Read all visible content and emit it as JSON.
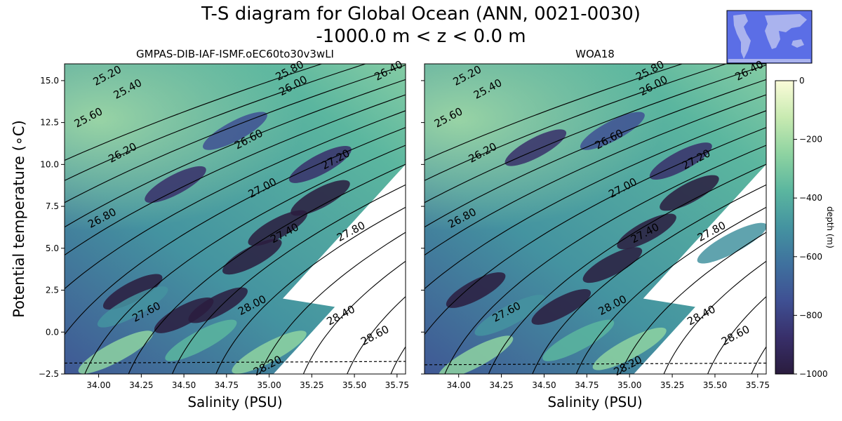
{
  "title_line1": "T-S diagram for Global Ocean (ANN, 0021-0030)",
  "title_line2": "-1000.0 m < z < 0.0 m",
  "chart_data": [
    {
      "type": "scatter",
      "panel": "left",
      "title": "GMPAS-DIB-IAF-ISMF.oEC60to30v3wLI",
      "xlabel": "Salinity (PSU)",
      "ylabel": "Potential temperature (∘C)",
      "xlim": [
        33.8,
        35.8
      ],
      "ylim": [
        -2.5,
        16.0
      ],
      "xticks": [
        "34.00",
        "34.25",
        "34.50",
        "34.75",
        "35.00",
        "35.25",
        "35.50",
        "35.75"
      ],
      "yticks": [
        "−2.5",
        "0.0",
        "2.5",
        "5.0",
        "7.5",
        "10.0",
        "12.5",
        "15.0"
      ],
      "freezing_line_temp": -1.85,
      "density_labels": [
        {
          "text": "25.20",
          "s": 34.05,
          "t": 15.3
        },
        {
          "text": "25.40",
          "s": 34.17,
          "t": 14.5
        },
        {
          "text": "25.60",
          "s": 33.94,
          "t": 12.8
        },
        {
          "text": "25.80",
          "s": 35.12,
          "t": 15.6
        },
        {
          "text": "26.00",
          "s": 35.14,
          "t": 14.7
        },
        {
          "text": "26.20",
          "s": 34.14,
          "t": 10.7
        },
        {
          "text": "26.40",
          "s": 35.7,
          "t": 15.6
        },
        {
          "text": "26.60",
          "s": 34.88,
          "t": 11.5
        },
        {
          "text": "26.80",
          "s": 34.02,
          "t": 6.8
        },
        {
          "text": "27.00",
          "s": 34.96,
          "t": 8.6
        },
        {
          "text": "27.20",
          "s": 35.39,
          "t": 10.3
        },
        {
          "text": "27.40",
          "s": 35.09,
          "t": 5.9
        },
        {
          "text": "27.60",
          "s": 34.28,
          "t": 1.2
        },
        {
          "text": "27.80",
          "s": 35.48,
          "t": 6.0
        },
        {
          "text": "28.00",
          "s": 34.9,
          "t": 1.6
        },
        {
          "text": "28.20",
          "s": 34.99,
          "t": -2.0
        },
        {
          "text": "28.40",
          "s": 35.42,
          "t": 1.0
        },
        {
          "text": "28.60",
          "s": 35.62,
          "t": -0.2
        }
      ],
      "scatter_blobs": [
        {
          "s": 34.2,
          "t": 2.4,
          "depth": -1000
        },
        {
          "s": 34.5,
          "t": 1.0,
          "depth": -1000
        },
        {
          "s": 34.7,
          "t": 1.6,
          "depth": -1000
        },
        {
          "s": 34.9,
          "t": 4.5,
          "depth": -1000
        },
        {
          "s": 35.05,
          "t": 6.2,
          "depth": -1000
        },
        {
          "s": 35.3,
          "t": 8.0,
          "depth": -1000
        },
        {
          "s": 34.45,
          "t": 8.8,
          "depth": -900
        },
        {
          "s": 35.3,
          "t": 10.0,
          "depth": -850
        },
        {
          "s": 34.8,
          "t": 12.0,
          "depth": -750
        },
        {
          "s": 34.2,
          "t": 1.5,
          "depth": -450
        },
        {
          "s": 34.6,
          "t": -0.5,
          "depth": -400
        },
        {
          "s": 34.1,
          "t": -1.2,
          "depth": -250
        },
        {
          "s": 35.0,
          "t": -1.2,
          "depth": -250
        }
      ]
    },
    {
      "type": "scatter",
      "panel": "right",
      "title": "WOA18",
      "xlabel": "Salinity (PSU)",
      "xlim": [
        33.8,
        35.8
      ],
      "ylim": [
        -2.5,
        16.0
      ],
      "xticks": [
        "34.00",
        "34.25",
        "34.50",
        "34.75",
        "35.00",
        "35.25",
        "35.50",
        "35.75"
      ],
      "freezing_line_temp": -1.95,
      "density_labels": [
        {
          "text": "25.20",
          "s": 34.05,
          "t": 15.3
        },
        {
          "text": "25.40",
          "s": 34.17,
          "t": 14.5
        },
        {
          "text": "25.60",
          "s": 33.94,
          "t": 12.8
        },
        {
          "text": "25.80",
          "s": 35.12,
          "t": 15.6
        },
        {
          "text": "26.00",
          "s": 35.14,
          "t": 14.7
        },
        {
          "text": "26.20",
          "s": 34.14,
          "t": 10.7
        },
        {
          "text": "26.40",
          "s": 35.7,
          "t": 15.6
        },
        {
          "text": "26.60",
          "s": 34.88,
          "t": 11.5
        },
        {
          "text": "26.80",
          "s": 34.02,
          "t": 6.8
        },
        {
          "text": "27.00",
          "s": 34.96,
          "t": 8.6
        },
        {
          "text": "27.20",
          "s": 35.39,
          "t": 10.3
        },
        {
          "text": "27.40",
          "s": 35.09,
          "t": 5.9
        },
        {
          "text": "27.60",
          "s": 34.28,
          "t": 1.2
        },
        {
          "text": "27.80",
          "s": 35.48,
          "t": 6.0
        },
        {
          "text": "28.00",
          "s": 34.9,
          "t": 1.6
        },
        {
          "text": "28.20",
          "s": 34.99,
          "t": -2.0
        },
        {
          "text": "28.40",
          "s": 35.42,
          "t": 1.0
        },
        {
          "text": "28.60",
          "s": 35.62,
          "t": -0.2
        }
      ],
      "scatter_blobs": [
        {
          "s": 34.1,
          "t": 2.5,
          "depth": -1000
        },
        {
          "s": 34.6,
          "t": 1.5,
          "depth": -1000
        },
        {
          "s": 34.9,
          "t": 4.0,
          "depth": -1000
        },
        {
          "s": 35.1,
          "t": 6.0,
          "depth": -1000
        },
        {
          "s": 35.35,
          "t": 8.3,
          "depth": -1000
        },
        {
          "s": 34.45,
          "t": 11.0,
          "depth": -900
        },
        {
          "s": 35.3,
          "t": 10.2,
          "depth": -850
        },
        {
          "s": 34.9,
          "t": 12.0,
          "depth": -750
        },
        {
          "s": 34.3,
          "t": 1.0,
          "depth": -450
        },
        {
          "s": 34.7,
          "t": -0.5,
          "depth": -400
        },
        {
          "s": 34.1,
          "t": -1.5,
          "depth": -250
        },
        {
          "s": 35.0,
          "t": -1.0,
          "depth": -300
        },
        {
          "s": 35.6,
          "t": 5.3,
          "depth": -500
        }
      ]
    }
  ],
  "colorbar": {
    "label": "depth (m)",
    "ticks": [
      "0",
      "−200",
      "−400",
      "−600",
      "−800",
      "−1000"
    ],
    "colors": [
      "#fbfcd9",
      "#c8eab1",
      "#8ed3a1",
      "#5bb69f",
      "#4493a0",
      "#3f719e",
      "#3f5093",
      "#382f6a",
      "#2a1c3e"
    ]
  },
  "inset_map": {
    "ocean_color": "#5b6ee6",
    "land_color": "#aab3ee"
  }
}
